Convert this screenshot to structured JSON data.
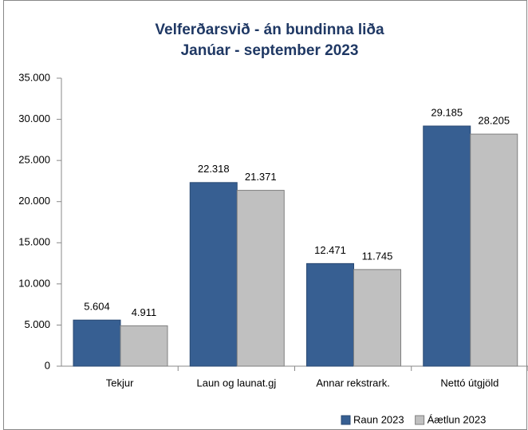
{
  "chart_data": {
    "type": "bar",
    "title": "Velferðarsvið - án bundinna liða",
    "subtitle": "Janúar - september 2023",
    "categories": [
      "Tekjur",
      "Laun og launat.gj",
      "Annar rekstrark.",
      "Nettó útgjöld"
    ],
    "series": [
      {
        "name": "Raun 2023",
        "color": "#375f92",
        "values": [
          5604,
          22318,
          12471,
          29185
        ],
        "value_labels": [
          "5.604",
          "22.318",
          "12.471",
          "29.185"
        ]
      },
      {
        "name": "Áætlun 2023",
        "color": "#c0c0c0",
        "values": [
          4911,
          21371,
          11745,
          28205
        ],
        "value_labels": [
          "4.911",
          "21.371",
          "11.745",
          "28.205"
        ]
      }
    ],
    "ylim": [
      0,
      35000
    ],
    "yticks": [
      0,
      {
        "value": 5000,
        "label": "5.000"
      },
      {
        "value": 10000,
        "label": "10.000"
      },
      {
        "value": 15000,
        "label": "15.000"
      },
      {
        "value": 20000,
        "label": "20.000"
      },
      {
        "value": 25000,
        "label": "25.000"
      },
      {
        "value": 30000,
        "label": "30.000"
      },
      {
        "value": 35000,
        "label": "35.000"
      }
    ],
    "grid": false,
    "legend": "bottom-right"
  }
}
